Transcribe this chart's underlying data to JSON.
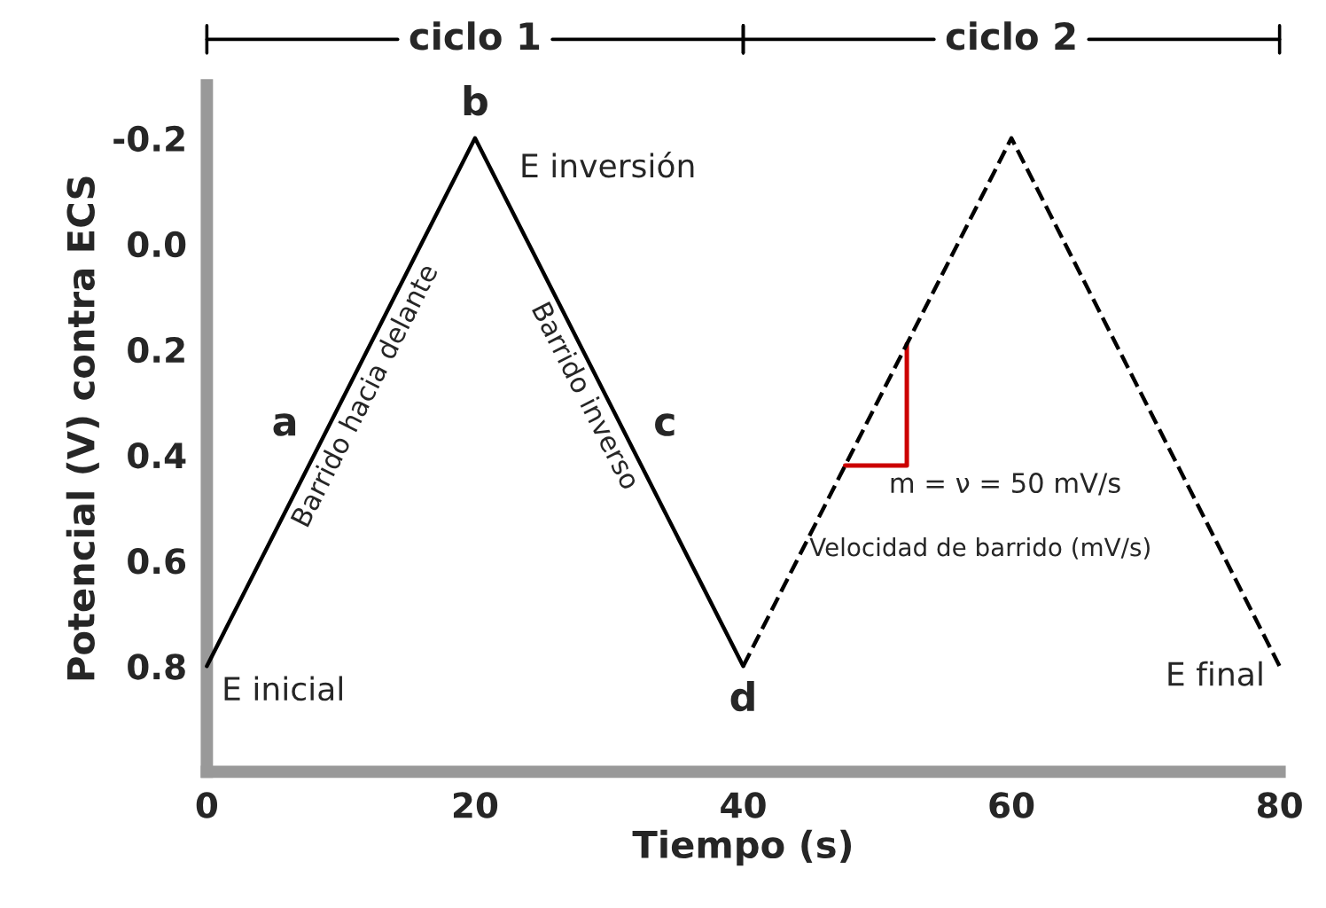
{
  "chart_data": {
    "type": "line",
    "xlabel": "Tiempo (s)",
    "ylabel": "Potencial (V) contra ECS",
    "series": [
      {
        "x": [
          0,
          20,
          40
        ],
        "values": [
          0.8,
          -0.2,
          0.8
        ],
        "color": "#000000",
        "line_style": "solid"
      },
      {
        "x": [
          40,
          60,
          80
        ],
        "values": [
          0.8,
          -0.2,
          0.8
        ],
        "color": "#000000",
        "line_style": "dashed"
      }
    ],
    "xlim": [
      0,
      80
    ],
    "xticks": [
      0,
      20,
      40,
      60,
      80
    ],
    "ylim": [
      1.0,
      -0.3
    ],
    "yticks": [
      {
        "value": -0.2,
        "label": "-0.2"
      },
      {
        "value": 0,
        "label": "0.0"
      },
      {
        "value": 0.2,
        "label": "0.2"
      },
      {
        "value": 0.4,
        "label": "0.4"
      },
      {
        "value": 0.6,
        "label": "0.6"
      },
      {
        "value": 0.8,
        "label": "0.8"
      }
    ],
    "grid": false,
    "legend": false,
    "marker": "none",
    "annotations": [
      "ciclo 1",
      "ciclo 2",
      "b",
      "E inversión",
      "a",
      "c",
      "Barrido hacia delante",
      "Barrido inverso",
      "E inicial",
      "d",
      "E final",
      {
        "text": "m = ν = 50 mV/s",
        "x": 47.6,
        "y": 0.42
      },
      "Velocidad de barrido (mV/s)"
    ]
  }
}
